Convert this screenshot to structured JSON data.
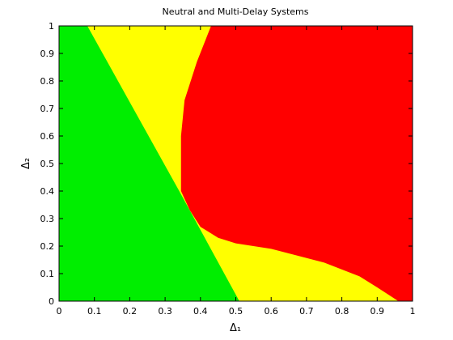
{
  "chart_data": {
    "type": "region",
    "title": "Neutral and Multi-Delay Systems",
    "xlabel": "Δ₁",
    "ylabel": "Δ₂",
    "xlim": [
      0,
      1
    ],
    "ylim": [
      0,
      1
    ],
    "xticks": [
      0,
      0.1,
      0.2,
      0.3,
      0.4,
      0.5,
      0.6,
      0.7,
      0.8,
      0.9,
      1
    ],
    "yticks": [
      0,
      0.1,
      0.2,
      0.3,
      0.4,
      0.5,
      0.6,
      0.7,
      0.8,
      0.9,
      1
    ],
    "regions": [
      {
        "color": "#ffff00",
        "x": [
          0,
          1,
          1,
          0
        ],
        "y": [
          0,
          0,
          1,
          1
        ]
      },
      {
        "color": "#00ee00",
        "x": [
          0,
          0.51,
          0.34,
          0.08,
          0
        ],
        "y": [
          0,
          0,
          0.4,
          1,
          1
        ]
      },
      {
        "color": "#ff0000",
        "x": [
          0.43,
          1,
          1,
          0.96,
          0.9,
          0.85,
          0.75,
          0.6,
          0.5,
          0.45,
          0.4,
          0.37,
          0.345,
          0.345,
          0.355,
          0.39
        ],
        "y": [
          1,
          1,
          0,
          0,
          0.05,
          0.09,
          0.14,
          0.19,
          0.21,
          0.23,
          0.27,
          0.33,
          0.4,
          0.6,
          0.73,
          0.87
        ]
      }
    ]
  }
}
